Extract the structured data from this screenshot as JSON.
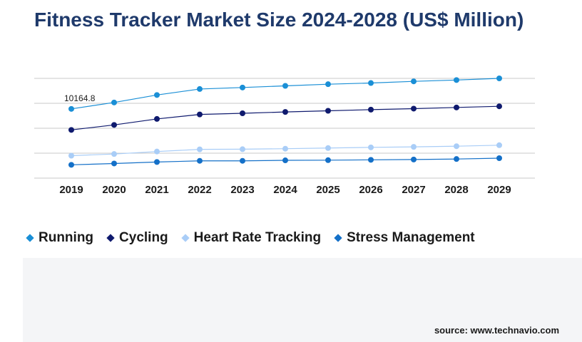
{
  "title": "Fitness Tracker Market Size 2024-2028 (US$ Million)",
  "source": "source: www.technavio.com",
  "chart_data": {
    "type": "line",
    "title": "Fitness Tracker Market Size 2024-2028 (US$ Million)",
    "xlabel": "",
    "ylabel": "",
    "x": [
      "2019",
      "2020",
      "2021",
      "2022",
      "2023",
      "2024",
      "2025",
      "2026",
      "2027",
      "2028",
      "2029"
    ],
    "ylim": [
      0,
      12000
    ],
    "grid": true,
    "legend_position": "bottom",
    "series": [
      {
        "name": "Running",
        "color": "#1a8fd6",
        "values": [
          10164.8,
          10550,
          11000,
          11360,
          11450,
          11550,
          11650,
          11720,
          11820,
          11900,
          12000
        ]
      },
      {
        "name": "Cycling",
        "color": "#0f1a6e",
        "values": [
          8900,
          9200,
          9560,
          9830,
          9900,
          9980,
          10050,
          10120,
          10180,
          10250,
          10320
        ]
      },
      {
        "name": "Heart Rate Tracking",
        "color": "#a9cdf7",
        "values": [
          7350,
          7450,
          7600,
          7730,
          7740,
          7770,
          7810,
          7850,
          7880,
          7920,
          7980
        ]
      },
      {
        "name": "Stress Management",
        "color": "#1470c8",
        "values": [
          6800,
          6880,
          6970,
          7040,
          7040,
          7070,
          7080,
          7100,
          7120,
          7150,
          7200
        ]
      }
    ],
    "annotations": [
      {
        "series": 0,
        "index": 0,
        "text": "10164.8"
      }
    ]
  }
}
